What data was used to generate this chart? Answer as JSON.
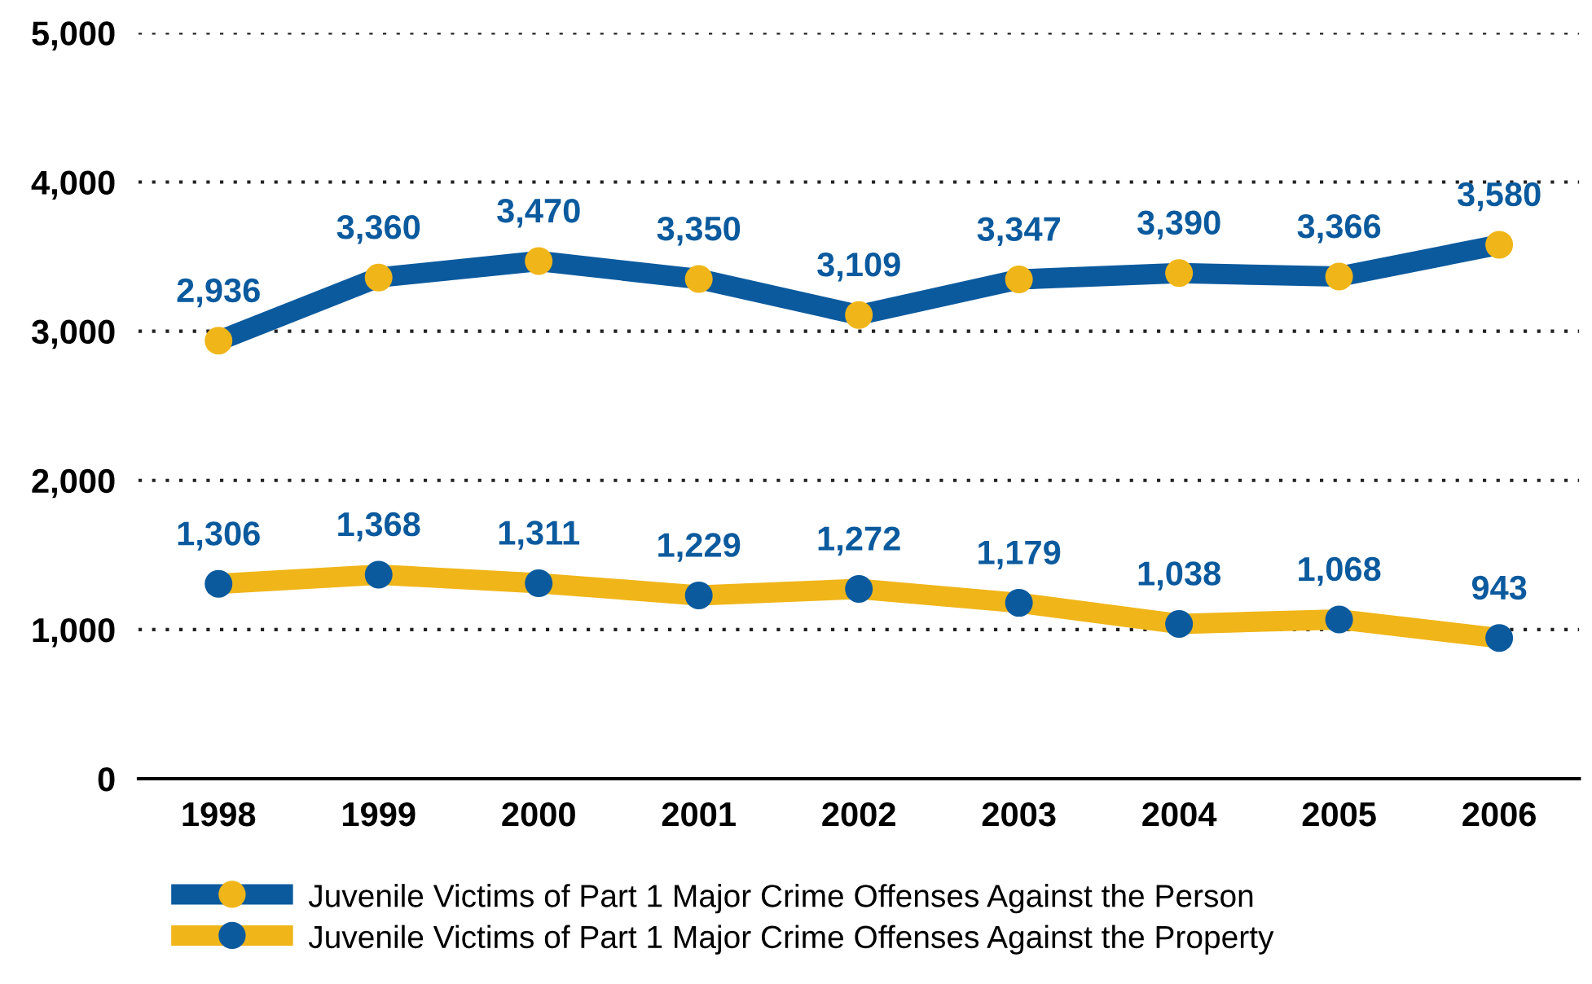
{
  "chart_data": {
    "type": "line",
    "categories": [
      "1998",
      "1999",
      "2000",
      "2001",
      "2002",
      "2003",
      "2004",
      "2005",
      "2006"
    ],
    "series": [
      {
        "name": "Juvenile Victims of Part 1 Major Crime Offenses Against the Person",
        "color": "#0b5a9e",
        "colors": [
          "#f0b519",
          "#f0b519",
          "#f0b519",
          "#f0b519",
          "#f0b519",
          "#f0b519",
          "#f0b519",
          "#f0b519",
          "#f0b519"
        ],
        "values": [
          2936,
          3360,
          3470,
          3350,
          3109,
          3347,
          3390,
          3366,
          3580
        ],
        "value_labels": [
          "2,936",
          "3,360",
          "3,470",
          "3,350",
          "3,109",
          "3,347",
          "3,390",
          "3,366",
          "3,580"
        ]
      },
      {
        "name": "Juvenile Victims of Part 1 Major Crime Offenses Against the Property",
        "color": "#f0b519",
        "colors": [
          "#0b5a9e",
          "#0b5a9e",
          "#0b5a9e",
          "#0b5a9e",
          "#0b5a9e",
          "#0b5a9e",
          "#0b5a9e",
          "#0b5a9e",
          "#0b5a9e"
        ],
        "values": [
          1306,
          1368,
          1311,
          1229,
          1272,
          1179,
          1038,
          1068,
          943
        ],
        "value_labels": [
          "1,306",
          "1,368",
          "1,311",
          "1,229",
          "1,272",
          "1,179",
          "1,038",
          "1,068",
          "943"
        ]
      }
    ],
    "ylim": [
      0,
      5000
    ],
    "yticks": [
      {
        "value": 0,
        "label": "0"
      },
      {
        "value": 1000,
        "label": "1,000"
      },
      {
        "value": 2000,
        "label": "2,000"
      },
      {
        "value": 3000,
        "label": "3,000"
      },
      {
        "value": 4000,
        "label": "4,000"
      },
      {
        "value": 5000,
        "label": "5,000"
      }
    ],
    "grid": "y",
    "legend": "bottom",
    "marker": "circle",
    "line_style": "solid"
  }
}
